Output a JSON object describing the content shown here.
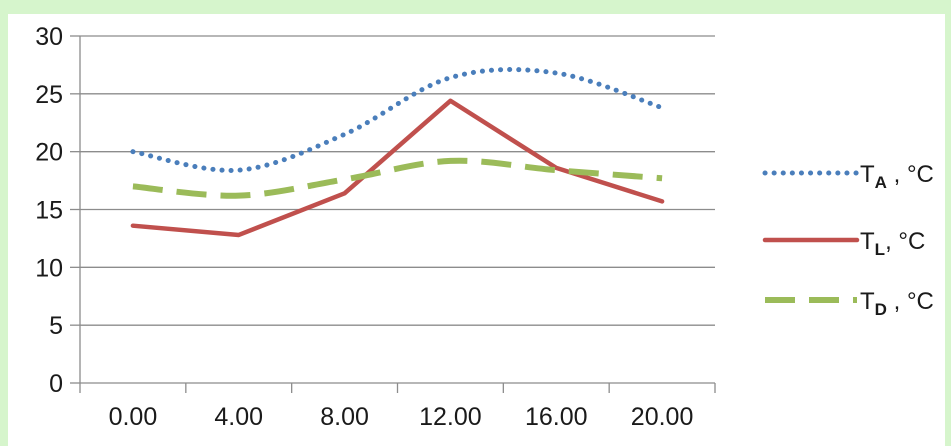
{
  "chart_data": {
    "type": "line",
    "categories": [
      "0.00",
      "4.00",
      "8.00",
      "12.00",
      "16.00",
      "20.00"
    ],
    "x": [
      2,
      6,
      10,
      14,
      18,
      22
    ],
    "xlim": [
      0,
      24
    ],
    "ylim": [
      0,
      30
    ],
    "yticks": [
      "0",
      "5",
      "10",
      "15",
      "20",
      "25",
      "30"
    ],
    "grid": true,
    "legend_position": "right",
    "series": [
      {
        "name": "TA , °C",
        "label_main": "T",
        "label_sub": "A",
        "label_rest": " , °C",
        "style": "dotted",
        "color": "#4a7ebb",
        "values": [
          20.0,
          18.4,
          21.5,
          26.4,
          26.8,
          23.8
        ]
      },
      {
        "name": "TL, °C",
        "label_main": "T",
        "label_sub": "L",
        "label_rest": ", °C",
        "style": "solid",
        "color": "#c0504d",
        "values": [
          13.6,
          12.8,
          16.4,
          24.4,
          18.6,
          15.7
        ]
      },
      {
        "name": "TD , °C",
        "label_main": "T",
        "label_sub": "D",
        "label_rest": " , °C",
        "style": "dashed",
        "color": "#9bbb59",
        "values": [
          17.0,
          16.2,
          17.6,
          19.2,
          18.4,
          17.7
        ]
      }
    ]
  }
}
